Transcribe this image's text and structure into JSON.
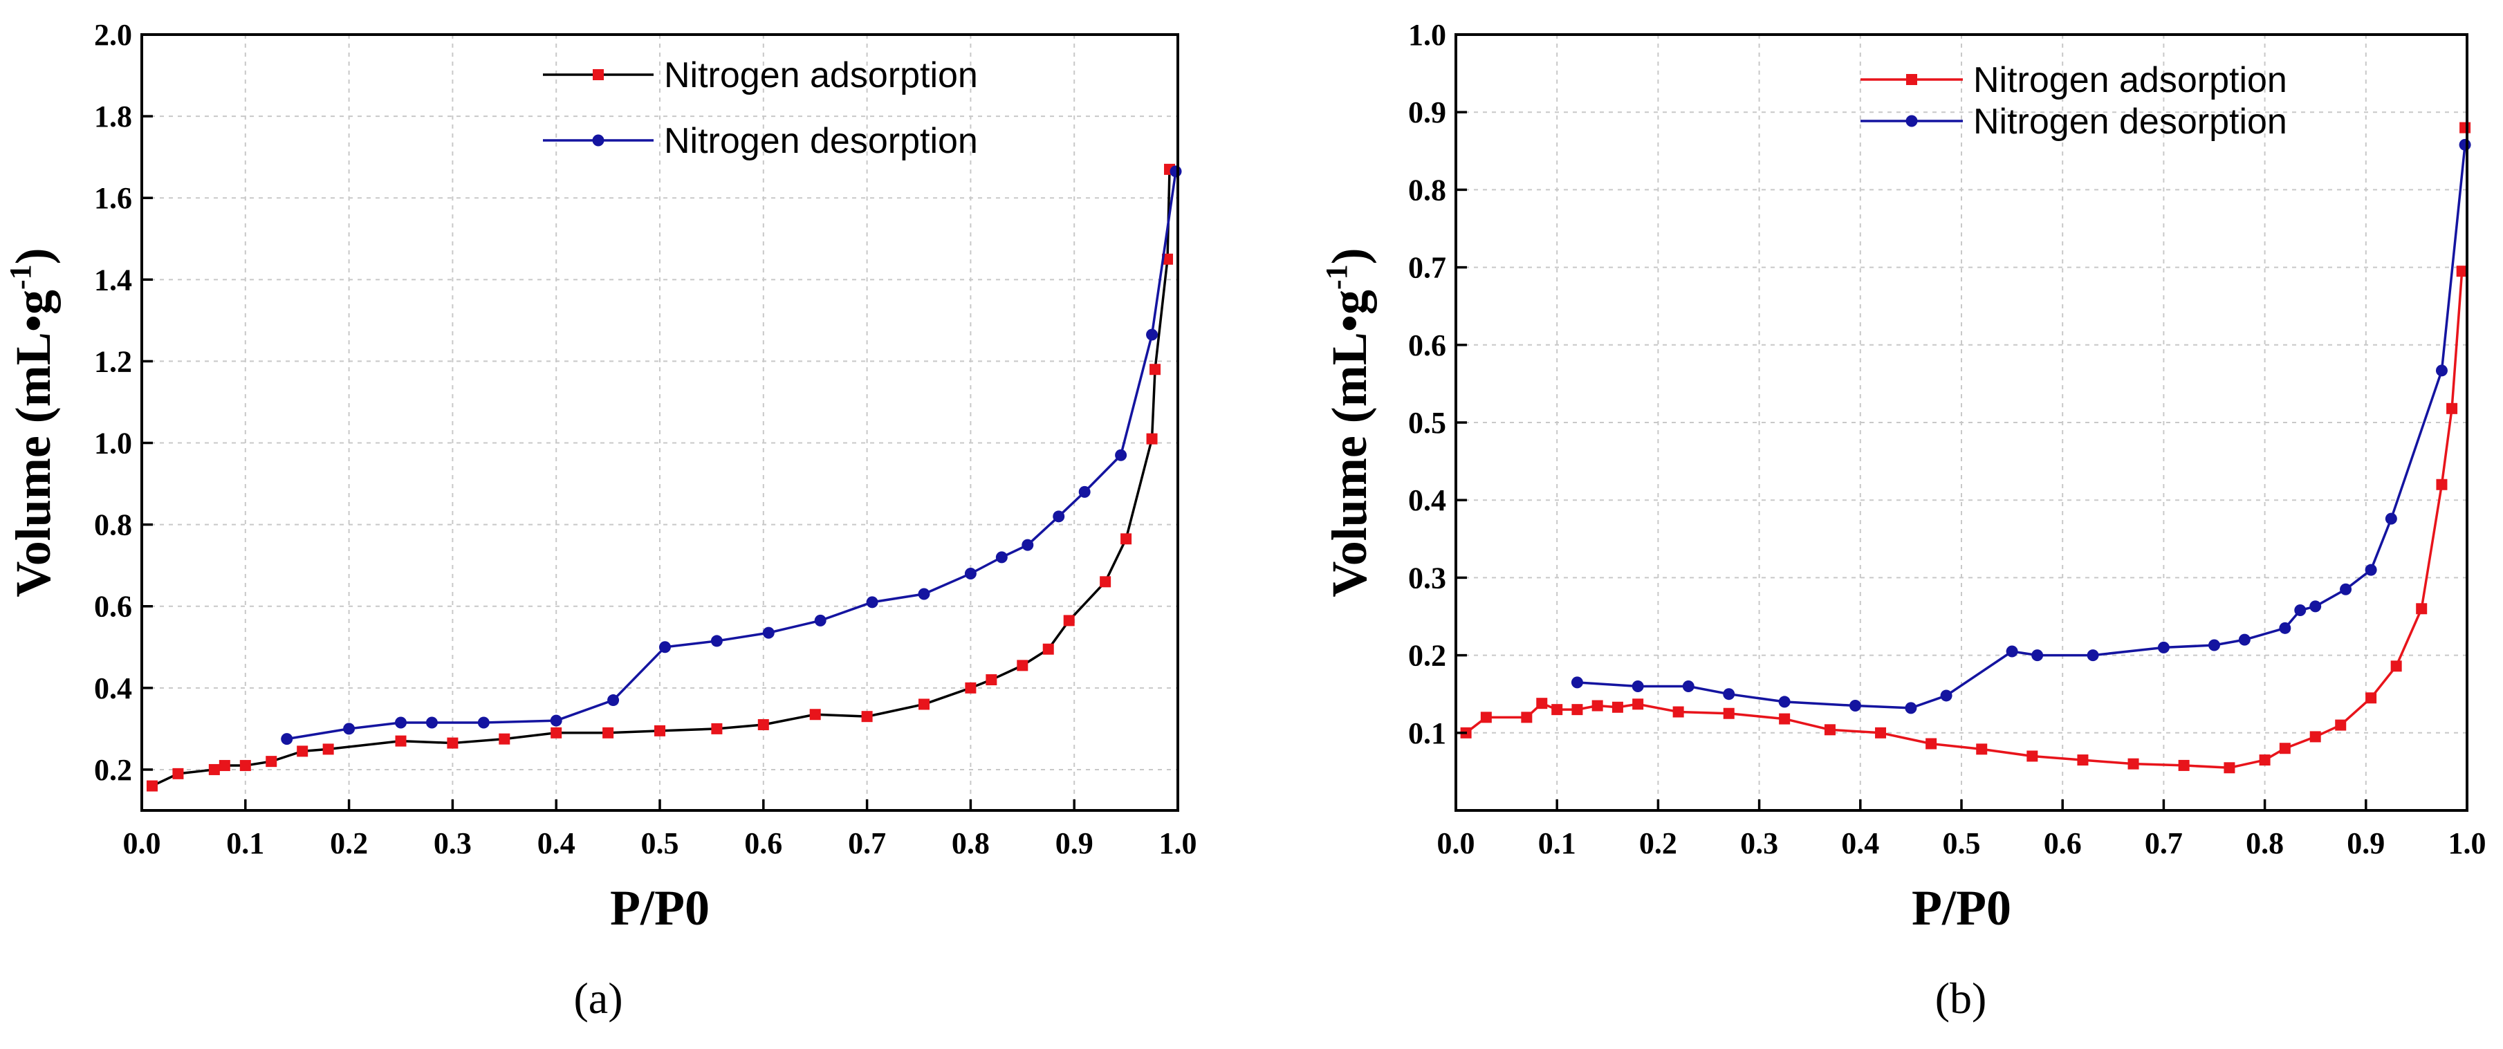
{
  "chart_data": [
    {
      "type": "line",
      "caption": "(a)",
      "xlabel": "P/P0",
      "ylabel_main": "Volume (mL•g",
      "ylabel_sup": "-1",
      "ylabel_close": ")",
      "xlim": [
        0.0,
        1.0
      ],
      "ylim": [
        0.1,
        2.0
      ],
      "xticks": [
        "0.0",
        "0.1",
        "0.2",
        "0.3",
        "0.4",
        "0.5",
        "0.6",
        "0.7",
        "0.8",
        "0.9",
        "1.0"
      ],
      "yticks": [
        "0.2",
        "0.4",
        "0.6",
        "0.8",
        "1.0",
        "1.2",
        "1.4",
        "1.6",
        "1.8",
        "2.0"
      ],
      "grid": true,
      "legend_position": "top-right",
      "series": [
        {
          "name": "Nitrogen adsorption",
          "line_color": "#000000",
          "marker_color": "#e8141b",
          "marker": "square",
          "x": [
            0.01,
            0.035,
            0.07,
            0.08,
            0.1,
            0.125,
            0.155,
            0.18,
            0.25,
            0.3,
            0.35,
            0.4,
            0.45,
            0.5,
            0.555,
            0.6,
            0.65,
            0.7,
            0.755,
            0.8,
            0.82,
            0.85,
            0.875,
            0.895,
            0.93,
            0.95,
            0.975,
            0.978,
            0.99,
            0.992
          ],
          "y": [
            0.16,
            0.19,
            0.2,
            0.21,
            0.21,
            0.22,
            0.245,
            0.25,
            0.27,
            0.265,
            0.275,
            0.29,
            0.29,
            0.295,
            0.3,
            0.31,
            0.335,
            0.33,
            0.36,
            0.4,
            0.42,
            0.455,
            0.495,
            0.565,
            0.66,
            0.765,
            1.01,
            1.18,
            1.45,
            1.67
          ]
        },
        {
          "name": "Nitrogen desorption",
          "line_color": "#1414a0",
          "marker_color": "#1414a0",
          "marker": "circle",
          "x": [
            0.14,
            0.2,
            0.25,
            0.28,
            0.33,
            0.4,
            0.455,
            0.505,
            0.555,
            0.605,
            0.655,
            0.705,
            0.755,
            0.8,
            0.83,
            0.855,
            0.885,
            0.91,
            0.945,
            0.975,
            0.998
          ],
          "y": [
            0.275,
            0.3,
            0.315,
            0.315,
            0.315,
            0.32,
            0.37,
            0.5,
            0.515,
            0.535,
            0.565,
            0.61,
            0.63,
            0.68,
            0.72,
            0.75,
            0.82,
            0.88,
            0.97,
            1.265,
            1.665
          ]
        }
      ]
    },
    {
      "type": "line",
      "caption": "(b)",
      "xlabel": "P/P0",
      "ylabel_main": "Volume (mL•g",
      "ylabel_sup": "-1",
      "ylabel_close": ")",
      "xlim": [
        0.0,
        1.0
      ],
      "ylim": [
        0.0,
        1.0
      ],
      "xticks": [
        "0.0",
        "0.1",
        "0.2",
        "0.3",
        "0.4",
        "0.5",
        "0.6",
        "0.7",
        "0.8",
        "0.9",
        "1.0"
      ],
      "yticks": [
        "0.1",
        "0.2",
        "0.3",
        "0.4",
        "0.5",
        "0.6",
        "0.7",
        "0.8",
        "0.9",
        "1.0"
      ],
      "grid": true,
      "legend_position": "top-right",
      "series": [
        {
          "name": "Nitrogen adsorption",
          "line_color": "#e8141b",
          "marker_color": "#e8141b",
          "marker": "square",
          "x": [
            0.01,
            0.03,
            0.07,
            0.085,
            0.1,
            0.12,
            0.14,
            0.16,
            0.18,
            0.22,
            0.27,
            0.325,
            0.37,
            0.42,
            0.47,
            0.52,
            0.57,
            0.62,
            0.67,
            0.72,
            0.765,
            0.8,
            0.82,
            0.85,
            0.875,
            0.905,
            0.93,
            0.955,
            0.975,
            0.985,
            0.995
          ],
          "y": [
            0.1,
            0.12,
            0.12,
            0.138,
            0.13,
            0.13,
            0.135,
            0.133,
            0.137,
            0.127,
            0.125,
            0.118,
            0.104,
            0.1,
            0.086,
            0.079,
            0.07,
            0.065,
            0.06,
            0.058,
            0.055,
            0.065,
            0.08,
            0.095,
            0.11,
            0.145,
            0.186,
            0.26,
            0.42,
            0.518,
            0.695
          ]
        },
        {
          "name": "Nitrogen desorption",
          "line_color": "#1414a0",
          "marker_color": "#1414a0",
          "marker": "circle",
          "x": [
            0.12,
            0.18,
            0.23,
            0.27,
            0.325,
            0.395,
            0.45,
            0.485,
            0.55,
            0.575,
            0.63,
            0.7,
            0.75,
            0.78,
            0.82,
            0.835,
            0.85,
            0.88,
            0.905,
            0.925,
            0.975,
            0.998
          ],
          "y": [
            0.165,
            0.16,
            0.16,
            0.15,
            0.14,
            0.135,
            0.132,
            0.148,
            0.205,
            0.2,
            0.2,
            0.21,
            0.213,
            0.22,
            0.235,
            0.258,
            0.263,
            0.285,
            0.31,
            0.376,
            0.567,
            0.858
          ]
        }
      ],
      "extra_point": {
        "series": 0,
        "x": 0.998,
        "y": 0.88
      }
    }
  ]
}
